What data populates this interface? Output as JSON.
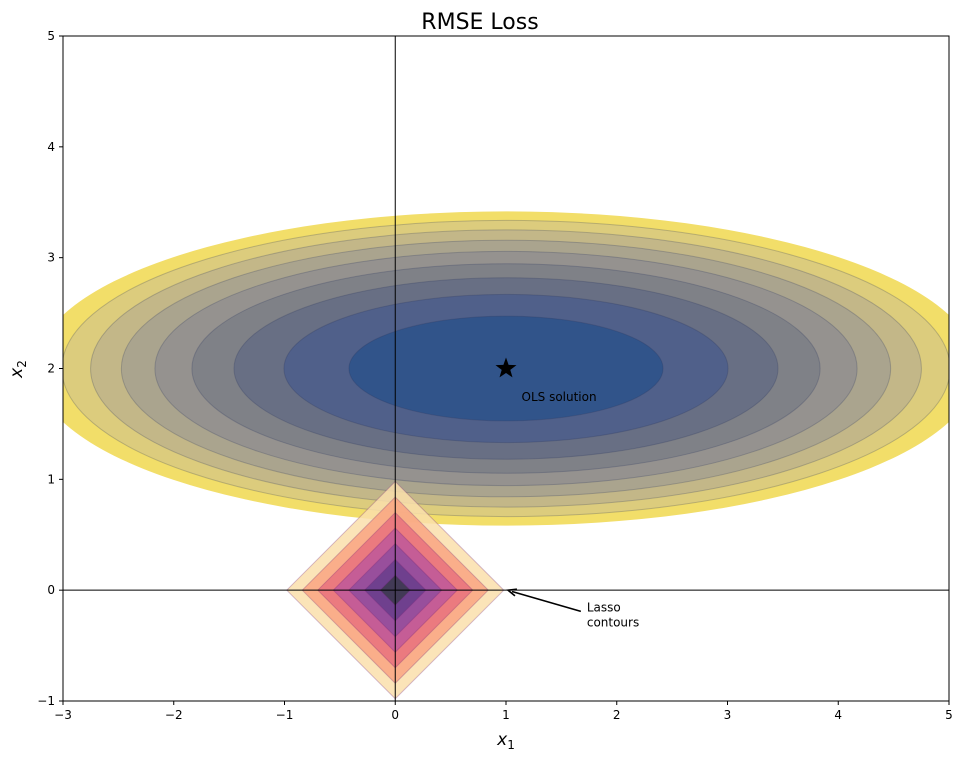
{
  "chart_data": {
    "type": "contour",
    "title": "RMSE Loss",
    "xlabel": "x",
    "xlabel_sub": "1",
    "ylabel": "x",
    "ylabel_sub": "2",
    "xlim": [
      -3,
      5
    ],
    "ylim": [
      -1,
      5
    ],
    "xticks": [
      -3,
      -2,
      -1,
      0,
      1,
      2,
      3,
      4,
      5
    ],
    "yticks": [
      -1,
      0,
      1,
      2,
      3,
      4,
      5
    ],
    "grid": false,
    "loss_contours": {
      "center": [
        1,
        2
      ],
      "axis_ratio": 3,
      "semi_major_axes": [
        1.418,
        2.005,
        2.456,
        2.836,
        3.17,
        3.473,
        3.751,
        4.01,
        4.254
      ],
      "colors": [
        "#31548a",
        "#50608a",
        "#686f84",
        "#7f8187",
        "#95928f",
        "#aaa48e",
        "#c3b788",
        "#dccc7d",
        "#f2de69"
      ]
    },
    "lasso_contours": {
      "center": [
        0,
        0
      ],
      "radii": [
        0.136,
        0.277,
        0.42,
        0.56,
        0.7,
        0.84,
        0.98
      ],
      "colors": [
        "#3b3a4c",
        "#673d8c",
        "#8f4c9e",
        "#be589a",
        "#e8717c",
        "#f9a581",
        "#fadfac"
      ]
    },
    "ols_point": {
      "x": 1,
      "y": 2,
      "label": "OLS solution"
    },
    "annotation": {
      "label_line1": "Lasso",
      "label_line2": "contours",
      "target": [
        1,
        0
      ],
      "text_at": [
        1.73,
        -0.2
      ]
    }
  }
}
